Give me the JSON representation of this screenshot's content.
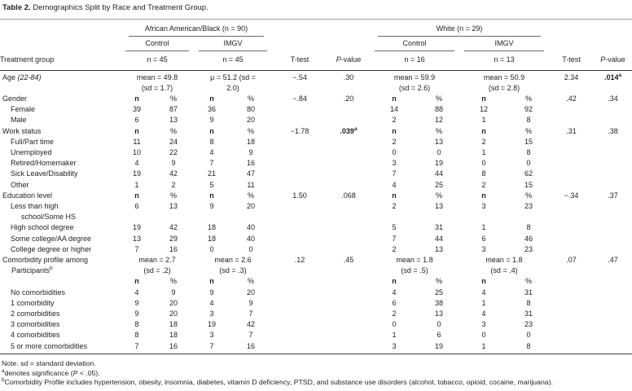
{
  "title": {
    "bold": "Table 2.",
    "text": " Demographics Split by Race and Treatment Group."
  },
  "header": {
    "treatment_group": "Treatment group",
    "groups": [
      {
        "label": "African American/Black (n = 90)"
      },
      {
        "label": "White (n = 29)"
      }
    ],
    "subgroups": {
      "control": "Control",
      "imgv": "IMGV"
    },
    "ns": [
      "n = 45",
      "n = 45",
      "n = 16",
      "n = 13"
    ],
    "ttest": "T-test",
    "p_italic": "P",
    "p_rest": "-value"
  },
  "rows": [
    {
      "label": {
        "text": "Age",
        "italic": " (22-84)",
        "indent": 0
      },
      "cells": [
        {
          "span": 2,
          "lines": [
            "mean = 49.8",
            "(sd = 1.7)"
          ]
        },
        {
          "span": 2,
          "lines": [
            "μ = 51.2 (sd =",
            "2.0)"
          ]
        },
        "−.54",
        ".30",
        {
          "span": 2,
          "lines": [
            "mean = 59.9",
            "(sd = 2.6)"
          ]
        },
        {
          "span": 2,
          "lines": [
            "mean = 50.9",
            "(sd = 2.8)"
          ]
        },
        "2.34",
        {
          "t": ".014",
          "sup": "a",
          "bold": true
        }
      ]
    },
    {
      "label": {
        "text": "Gender",
        "indent": 0
      },
      "cells": [
        {
          "t": "n",
          "bold": true
        },
        "%",
        {
          "t": "n",
          "bold": true
        },
        "%",
        "−.84",
        ".20",
        {
          "t": "n",
          "bold": true
        },
        "%",
        {
          "t": "n",
          "bold": true
        },
        "%",
        ".42",
        ".34"
      ]
    },
    {
      "label": {
        "text": "Female",
        "indent": 1
      },
      "cells": [
        "39",
        "87",
        "36",
        "80",
        "",
        "",
        "14",
        "88",
        "12",
        "92",
        "",
        ""
      ]
    },
    {
      "label": {
        "text": "Male",
        "indent": 1
      },
      "cells": [
        "6",
        "13",
        "9",
        "20",
        "",
        "",
        "2",
        "12",
        "1",
        "8",
        "",
        ""
      ]
    },
    {
      "label": {
        "text": "Work status",
        "indent": 0
      },
      "cells": [
        {
          "t": "n",
          "bold": true
        },
        "%",
        {
          "t": "n",
          "bold": true
        },
        "%",
        "−1.78",
        {
          "t": ".039",
          "sup": "a",
          "bold": true
        },
        {
          "t": "n",
          "bold": true
        },
        "%",
        {
          "t": "n",
          "bold": true
        },
        "%",
        ".31",
        ".38"
      ]
    },
    {
      "label": {
        "text": "Full/Part time",
        "indent": 1
      },
      "cells": [
        "11",
        "24",
        "8",
        "18",
        "",
        "",
        "2",
        "13",
        "2",
        "15",
        "",
        ""
      ]
    },
    {
      "label": {
        "text": "Unemployed",
        "indent": 1
      },
      "cells": [
        "10",
        "22",
        "4",
        "9",
        "",
        "",
        "0",
        "0",
        "1",
        "8",
        "",
        ""
      ]
    },
    {
      "label": {
        "text": "Retired/Homemaker",
        "indent": 1
      },
      "cells": [
        "4",
        "9",
        "7",
        "16",
        "",
        "",
        "3",
        "19",
        "0",
        "0",
        "",
        ""
      ]
    },
    {
      "label": {
        "text": "Sick Leave/Disability",
        "indent": 1
      },
      "cells": [
        "19",
        "42",
        "21",
        "47",
        "",
        "",
        "7",
        "44",
        "8",
        "62",
        "",
        ""
      ]
    },
    {
      "label": {
        "text": "Other",
        "indent": 1
      },
      "cells": [
        "1",
        "2",
        "5",
        "11",
        "",
        "",
        "4",
        "25",
        "2",
        "15",
        "",
        ""
      ]
    },
    {
      "label": {
        "text": "Education level",
        "indent": 0
      },
      "cells": [
        {
          "t": "n",
          "bold": true
        },
        "%",
        {
          "t": "n",
          "bold": true
        },
        "%",
        "1.50",
        ".068",
        {
          "t": "n",
          "bold": true
        },
        "%",
        {
          "t": "n",
          "bold": true
        },
        "%",
        "−.34",
        ".37"
      ]
    },
    {
      "label": {
        "text": "Less than high",
        "line2": "school/Some HS",
        "indent": 1
      },
      "cells": [
        "6",
        "13",
        "9",
        "20",
        "",
        "",
        "2",
        "13",
        "3",
        "23",
        "",
        ""
      ]
    },
    {
      "label": {
        "text": "High school degree",
        "indent": 1
      },
      "cells": [
        "19",
        "42",
        "18",
        "40",
        "",
        "",
        "5",
        "31",
        "1",
        "8",
        "",
        ""
      ]
    },
    {
      "label": {
        "text": "Some college/AA degree",
        "indent": 1
      },
      "cells": [
        "13",
        "29",
        "18",
        "40",
        "",
        "",
        "7",
        "44",
        "6",
        "46",
        "",
        ""
      ]
    },
    {
      "label": {
        "text": "College degree or higher",
        "indent": 1
      },
      "cells": [
        "7",
        "16",
        "0",
        "0",
        "",
        "",
        "2",
        "13",
        "3",
        "23",
        "",
        ""
      ]
    },
    {
      "label": {
        "text": "Comorbidity profile among",
        "line2": "Participants",
        "line2_sup": "b",
        "indent": 0
      },
      "cells": [
        {
          "span": 2,
          "lines": [
            "mean = 2.7",
            "(sd = .2)"
          ]
        },
        {
          "span": 2,
          "lines": [
            "mean = 2.6",
            "(sd = .3)"
          ]
        },
        ".12",
        ".45",
        {
          "span": 2,
          "lines": [
            "mean = 1.8",
            "(sd = .5)"
          ]
        },
        {
          "span": 2,
          "lines": [
            "mean = 1.8",
            "(sd = .4)"
          ]
        },
        ".07",
        ".47"
      ]
    },
    {
      "label": {
        "text": "",
        "indent": 0
      },
      "cells": [
        {
          "t": "n",
          "bold": true
        },
        "%",
        {
          "t": "n",
          "bold": true
        },
        "%",
        "",
        "",
        {
          "t": "n",
          "bold": true
        },
        "%",
        {
          "t": "n",
          "bold": true
        },
        "%",
        "",
        ""
      ]
    },
    {
      "label": {
        "text": "No comorbidities",
        "indent": 1
      },
      "cells": [
        "4",
        "9",
        "9",
        "20",
        "",
        "",
        "4",
        "25",
        "4",
        "31",
        "",
        ""
      ]
    },
    {
      "label": {
        "text": "1 comorbidity",
        "indent": 1
      },
      "cells": [
        "9",
        "20",
        "4",
        "9",
        "",
        "",
        "6",
        "38",
        "1",
        "8",
        "",
        ""
      ]
    },
    {
      "label": {
        "text": "2 comorbidities",
        "indent": 1
      },
      "cells": [
        "9",
        "20",
        "3",
        "7",
        "",
        "",
        "2",
        "13",
        "4",
        "31",
        "",
        ""
      ]
    },
    {
      "label": {
        "text": "3 comorbidities",
        "indent": 1
      },
      "cells": [
        "8",
        "18",
        "19",
        "42",
        "",
        "",
        "0",
        "0",
        "3",
        "23",
        "",
        ""
      ]
    },
    {
      "label": {
        "text": "4 comorbidities",
        "indent": 1
      },
      "cells": [
        "8",
        "18",
        "3",
        "7",
        "",
        "",
        "1",
        "6",
        "0",
        "0",
        "",
        ""
      ]
    },
    {
      "label": {
        "text": "5 or more comorbidities",
        "indent": 1
      },
      "cells": [
        "7",
        "16",
        "7",
        "16",
        "",
        "",
        "3",
        "19",
        "1",
        "8",
        "",
        ""
      ]
    }
  ],
  "footnotes": {
    "note": "Note. sd = standard deviation.",
    "a": {
      "sup": "a",
      "pre": "denotes significance (",
      "italic": "P",
      "post": " < .05)."
    },
    "b": {
      "sup": "b",
      "text": "Comorbidity Profile includes hypertension, obesity, insomnia, diabetes, vitamin D deficiency, PTSD, and substance use disorders (alcohol, tobacco, opioid, cocaine, marijuana)."
    }
  },
  "colors": {
    "text": "#1f1f1f",
    "rule_light": "#9a9a9a",
    "rule_mid": "#6a6a6a",
    "rule_dark": "#3a3a3a"
  }
}
